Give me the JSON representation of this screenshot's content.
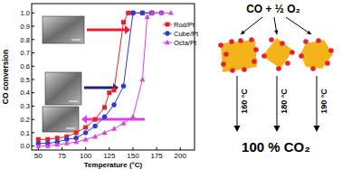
{
  "chart_data": {
    "type": "line",
    "x_label": "Temperature (°C)",
    "y_label": "CO conversion",
    "xlim": [
      43,
      215
    ],
    "xticks": [
      50,
      75,
      100,
      125,
      150,
      175,
      200
    ],
    "ylim": [
      -0.03,
      1.07
    ],
    "yticks": [
      {
        "value": 0,
        "label": "0.0"
      },
      0.1,
      0.2,
      0.3,
      0.4,
      0.5,
      0.6,
      0.7,
      0.8,
      0.9,
      {
        "value": 1,
        "label": "1.0"
      }
    ],
    "grid": false,
    "legend": "upper right",
    "series": [
      {
        "name": "Rod/Pt",
        "color": "#e8202a",
        "marker": "square",
        "line_style": "solid",
        "x": [
          50,
          60,
          70,
          80,
          90,
          100,
          110,
          120,
          125,
          130,
          140,
          145,
          150,
          160,
          170
        ],
        "values": [
          0.05,
          0.05,
          0.06,
          0.07,
          0.1,
          0.14,
          0.2,
          0.29,
          0.4,
          0.42,
          0.93,
          1.0,
          1.0,
          1.0,
          1.0
        ]
      },
      {
        "name": "Cube/Pt",
        "color": "#2b3bd6",
        "marker": "circle",
        "line_style": "solid",
        "x": [
          50,
          60,
          70,
          80,
          90,
          100,
          110,
          120,
          130,
          140,
          150,
          160,
          170,
          180
        ],
        "values": [
          0.02,
          0.02,
          0.03,
          0.05,
          0.06,
          0.1,
          0.15,
          0.22,
          0.31,
          0.45,
          1.0,
          1.0,
          1.0,
          1.0
        ]
      },
      {
        "name": "Octa/Pt",
        "color": "#e040e0",
        "marker": "triangle",
        "line_style": "solid",
        "x": [
          50,
          60,
          70,
          80,
          90,
          100,
          110,
          120,
          130,
          140,
          150,
          160,
          165,
          170,
          180,
          190
        ],
        "values": [
          0.0,
          0.0,
          0.01,
          0.02,
          0.03,
          0.05,
          0.07,
          0.1,
          0.13,
          0.17,
          0.22,
          0.5,
          0.97,
          1.0,
          1.0,
          1.0
        ]
      }
    ]
  },
  "scheme": {
    "reaction": "CO + ½ O₂",
    "temperatures": [
      "160 °C",
      "180 °C",
      "190 °C"
    ],
    "product": "100 % CO₂"
  }
}
